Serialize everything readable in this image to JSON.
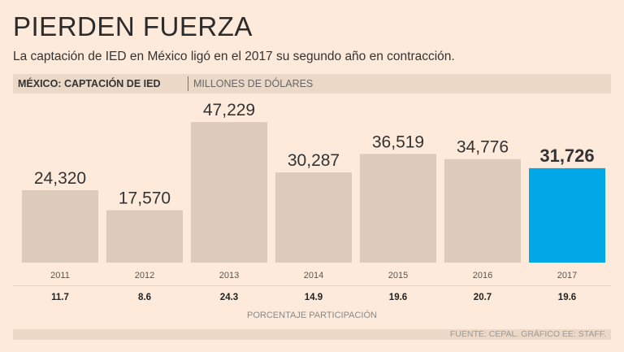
{
  "header": {
    "title": "PIERDEN FUERZA",
    "subtitle": "La captación de IED en México ligó en el 2017 su segundo año en contracción.",
    "band_bold": "MÉXICO: CAPTACIÓN DE IED",
    "band_unit": "MILLONES DE DÓLARES"
  },
  "chart_data": {
    "type": "bar",
    "title": "MÉXICO: CAPTACIÓN DE IED",
    "ylabel": "MILLONES DE DÓLARES",
    "categories": [
      "2011",
      "2012",
      "2013",
      "2014",
      "2015",
      "2016",
      "2017"
    ],
    "values": [
      24320,
      17570,
      47229,
      30287,
      36519,
      34776,
      31726
    ],
    "value_labels": [
      "24,320",
      "17,570",
      "47,229",
      "30,287",
      "36,519",
      "34,776",
      "31,726"
    ],
    "percent_participation": [
      "11.7",
      "8.6",
      "24.3",
      "14.9",
      "19.6",
      "20.7",
      "19.6"
    ],
    "percent_label": "PORCENTAJE PARTICIPACIÓN",
    "highlight_index": 6,
    "ylim": [
      0,
      50000
    ],
    "colors": {
      "bar": "#dccbbb",
      "highlight": "#00a8e8"
    }
  },
  "footer": {
    "source": "FUENTE: CEPAL. GRÁFICO EE: STAFF."
  }
}
